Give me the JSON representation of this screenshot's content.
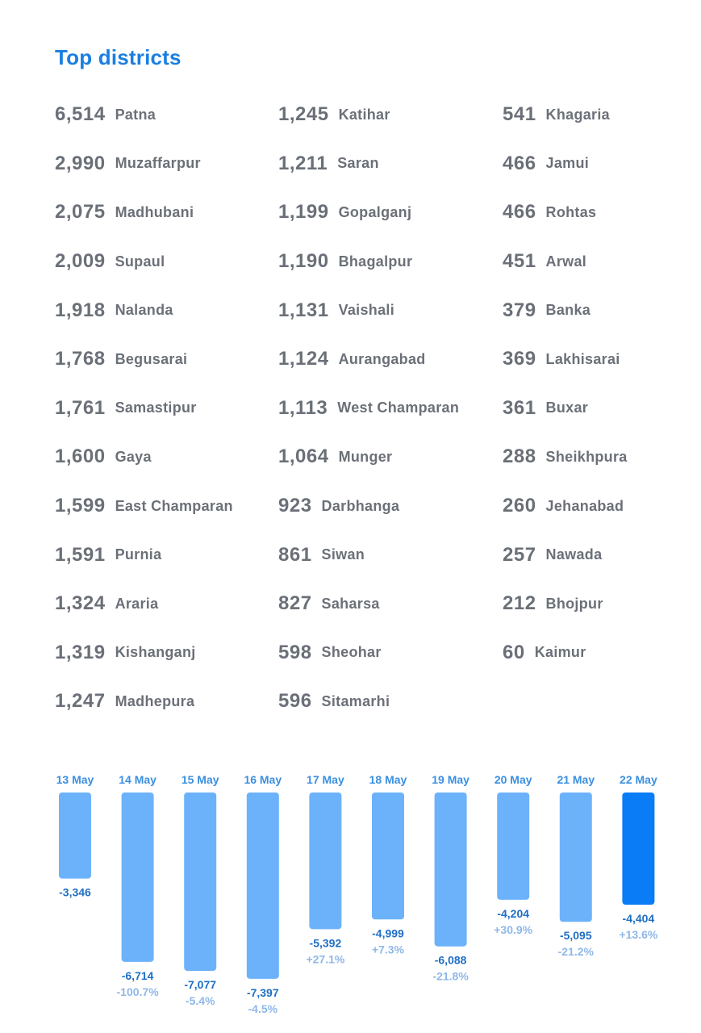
{
  "title": "Top districts",
  "districts": [
    [
      {
        "value": "6,514",
        "name": "Patna"
      },
      {
        "value": "2,990",
        "name": "Muzaffarpur"
      },
      {
        "value": "2,075",
        "name": "Madhubani"
      },
      {
        "value": "2,009",
        "name": "Supaul"
      },
      {
        "value": "1,918",
        "name": "Nalanda"
      },
      {
        "value": "1,768",
        "name": "Begusarai"
      },
      {
        "value": "1,761",
        "name": "Samastipur"
      },
      {
        "value": "1,600",
        "name": "Gaya"
      },
      {
        "value": "1,599",
        "name": "East Champaran"
      },
      {
        "value": "1,591",
        "name": "Purnia"
      },
      {
        "value": "1,324",
        "name": "Araria"
      },
      {
        "value": "1,319",
        "name": "Kishanganj"
      },
      {
        "value": "1,247",
        "name": "Madhepura"
      }
    ],
    [
      {
        "value": "1,245",
        "name": "Katihar"
      },
      {
        "value": "1,211",
        "name": "Saran"
      },
      {
        "value": "1,199",
        "name": "Gopalganj"
      },
      {
        "value": "1,190",
        "name": "Bhagalpur"
      },
      {
        "value": "1,131",
        "name": "Vaishali"
      },
      {
        "value": "1,124",
        "name": "Aurangabad"
      },
      {
        "value": "1,113",
        "name": "West Champaran"
      },
      {
        "value": "1,064",
        "name": "Munger"
      },
      {
        "value": "923",
        "name": "Darbhanga"
      },
      {
        "value": "861",
        "name": "Siwan"
      },
      {
        "value": "827",
        "name": "Saharsa"
      },
      {
        "value": "598",
        "name": "Sheohar"
      },
      {
        "value": "596",
        "name": "Sitamarhi"
      }
    ],
    [
      {
        "value": "541",
        "name": "Khagaria"
      },
      {
        "value": "466",
        "name": "Jamui"
      },
      {
        "value": "466",
        "name": "Rohtas"
      },
      {
        "value": "451",
        "name": "Arwal"
      },
      {
        "value": "379",
        "name": "Banka"
      },
      {
        "value": "369",
        "name": "Lakhisarai"
      },
      {
        "value": "361",
        "name": "Buxar"
      },
      {
        "value": "288",
        "name": "Sheikhpura"
      },
      {
        "value": "260",
        "name": "Jehanabad"
      },
      {
        "value": "257",
        "name": "Nawada"
      },
      {
        "value": "212",
        "name": "Bhojpur"
      },
      {
        "value": "60",
        "name": "Kaimur"
      }
    ]
  ],
  "colors": {
    "title": "#1a7fe0",
    "bar": "#6cb2fb",
    "bar_highlight": "#0a7cf5",
    "value_label": "#1f6fc4",
    "pct_label": "#8fb8e8",
    "text": "#6b7078"
  },
  "chart_data": {
    "type": "bar",
    "categories": [
      "13 May",
      "14 May",
      "15 May",
      "16 May",
      "17 May",
      "18 May",
      "19 May",
      "20 May",
      "21 May",
      "22 May"
    ],
    "values": [
      -3346,
      -6714,
      -7077,
      -7397,
      -5392,
      -4999,
      -6088,
      -4204,
      -5095,
      -4404
    ],
    "value_labels": [
      "-3,346",
      "-6,714",
      "-7,077",
      "-7,397",
      "-5,392",
      "-4,999",
      "-6,088",
      "-4,204",
      "-5,095",
      "-4,404"
    ],
    "pct_labels": [
      "",
      "-100.7%",
      "-5.4%",
      "-4.5%",
      "+27.1%",
      "+7.3%",
      "-21.8%",
      "+30.9%",
      "-21.2%",
      "+13.6%"
    ],
    "highlight_index": 9,
    "ylim": [
      -7500,
      0
    ]
  }
}
